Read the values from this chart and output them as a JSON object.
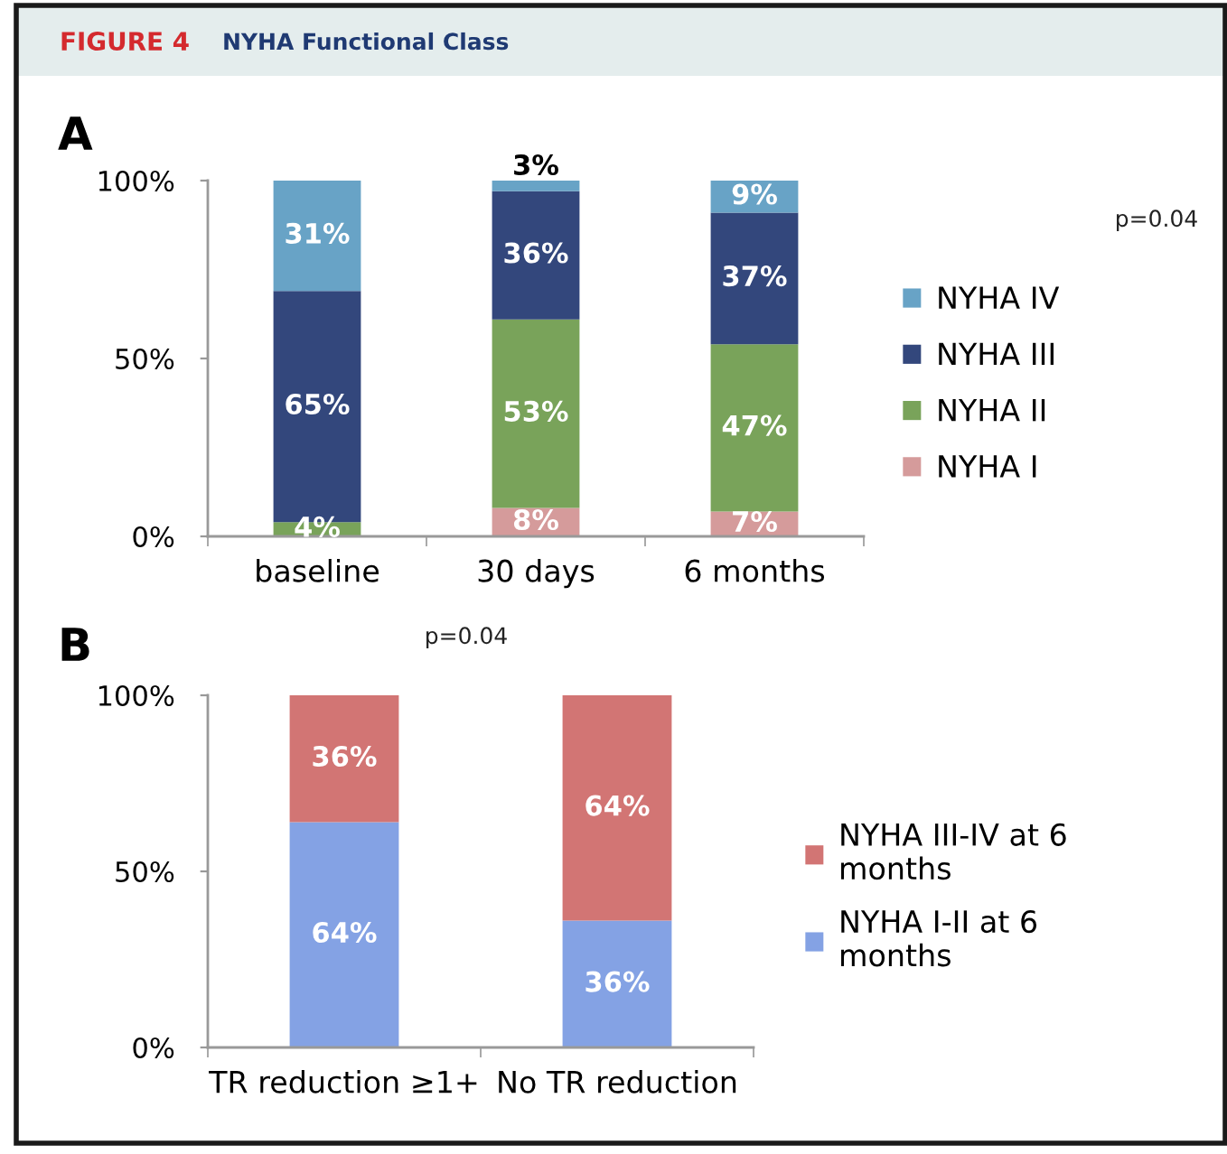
{
  "chart_data": [
    {
      "type": "bar",
      "title": "A",
      "categories": [
        "baseline",
        "30 days",
        "6 months"
      ],
      "stacked": true,
      "series": [
        {
          "name": "NYHA I",
          "color": "#d59b9b",
          "values": [
            null,
            8,
            7
          ],
          "value_labels": [
            null,
            "8%",
            "7%"
          ]
        },
        {
          "name": "NYHA II",
          "color": "#79a35a",
          "values": [
            4,
            53,
            47
          ],
          "value_labels": [
            "4%",
            "53%",
            "47%"
          ]
        },
        {
          "name": "NYHA III",
          "color": "#33477c",
          "values": [
            65,
            36,
            37
          ],
          "value_labels": [
            "65%",
            "36%",
            "37%"
          ]
        },
        {
          "name": "NYHA IV",
          "color": "#68a3c6",
          "values": [
            31,
            3,
            9
          ],
          "value_labels": [
            "31%",
            "3%",
            "9%"
          ]
        }
      ],
      "ylim": [
        0,
        100
      ],
      "yticks": [
        {
          "value": 0,
          "label": "0%"
        },
        {
          "value": 50,
          "label": "50%"
        },
        {
          "value": 100,
          "label": "100%"
        }
      ],
      "legend": "right",
      "annotations": [
        "FIGURE 4",
        "NYHA Functional Class",
        "p=0.04"
      ]
    },
    {
      "type": "bar",
      "title": "B",
      "categories": [
        "TR reduction ≥1+",
        "No TR reduction"
      ],
      "stacked": true,
      "series": [
        {
          "name": "NYHA I-II at 6 months",
          "color": "#84a2e4",
          "values": [
            64,
            36
          ],
          "value_labels": [
            "64%",
            "36%"
          ]
        },
        {
          "name": "NYHA III-IV at 6 months",
          "color": "#d27574",
          "values": [
            36,
            64
          ],
          "value_labels": [
            "36%",
            "64%"
          ]
        }
      ],
      "ylim": [
        0,
        100
      ],
      "yticks": [
        {
          "value": 0,
          "label": "0%"
        },
        {
          "value": 50,
          "label": "50%"
        },
        {
          "value": 100,
          "label": "100%"
        }
      ],
      "legend": "right",
      "annotations": [
        "p=0.04"
      ]
    }
  ]
}
